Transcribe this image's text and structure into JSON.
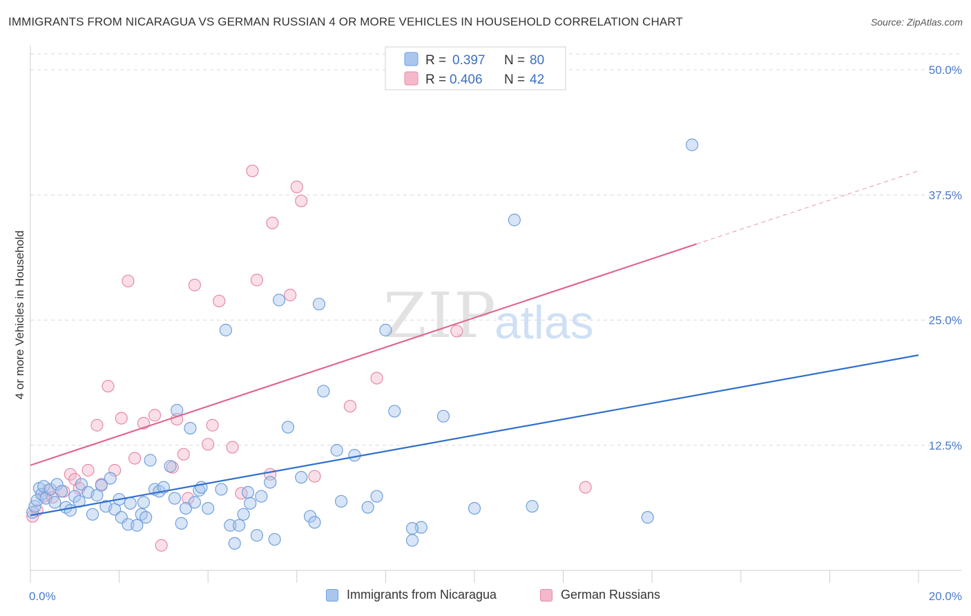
{
  "title": "IMMIGRANTS FROM NICARAGUA VS GERMAN RUSSIAN 4 OR MORE VEHICLES IN HOUSEHOLD CORRELATION CHART",
  "source": "Source: ZipAtlas.com",
  "watermark": {
    "zip": "ZIP",
    "atlas": "atlas"
  },
  "colors": {
    "blue_fill": "#a9c6ee",
    "blue_stroke": "#6f9fdc",
    "blue_line": "#2f6fcc",
    "pink_fill": "#f5b8cb",
    "pink_stroke": "#e58aa6",
    "pink_line": "#e0668e",
    "tick_text": "#4a79c9",
    "grid": "#d9d9d9"
  },
  "legend": {
    "r_label": "R =",
    "n_label": "N =",
    "rows": [
      {
        "r": "0.397",
        "n": "80",
        "series": "blue"
      },
      {
        "r": "0.406",
        "n": "42",
        "series": "pink"
      }
    ]
  },
  "chart_data": {
    "type": "scatter",
    "title": "IMMIGRANTS FROM NICARAGUA VS GERMAN RUSSIAN 4 OR MORE VEHICLES IN HOUSEHOLD CORRELATION CHART",
    "xlabel": "",
    "ylabel": "4 or more Vehicles in Household",
    "xlim": [
      0,
      20
    ],
    "ylim": [
      0,
      52
    ],
    "x_ticks": [
      {
        "value": 0,
        "label": "0.0%"
      },
      {
        "value": 20,
        "label": "20.0%"
      }
    ],
    "y_ticks": [
      {
        "value": 12.5,
        "label": "12.5%"
      },
      {
        "value": 25,
        "label": "25.0%"
      },
      {
        "value": 37.5,
        "label": "37.5%"
      },
      {
        "value": 50,
        "label": "50.0%"
      }
    ],
    "grid": true,
    "legend_position": "bottom-center",
    "series": [
      {
        "name": "Immigrants from Nicaragua",
        "color": "#6f9fdc",
        "r": 0.397,
        "n": 80,
        "trend": {
          "x0": 0,
          "y0": 5.5,
          "x1": 20,
          "y1": 21.5
        },
        "points": [
          [
            0.05,
            5.8
          ],
          [
            0.1,
            6.4
          ],
          [
            0.15,
            7.0
          ],
          [
            0.2,
            8.2
          ],
          [
            0.25,
            7.6
          ],
          [
            0.3,
            8.4
          ],
          [
            0.35,
            7.2
          ],
          [
            0.45,
            8.1
          ],
          [
            0.55,
            6.8
          ],
          [
            0.6,
            8.6
          ],
          [
            0.7,
            7.9
          ],
          [
            0.8,
            6.3
          ],
          [
            0.9,
            6.0
          ],
          [
            1.0,
            7.4
          ],
          [
            1.1,
            6.9
          ],
          [
            1.15,
            8.6
          ],
          [
            1.3,
            7.8
          ],
          [
            1.4,
            5.6
          ],
          [
            1.5,
            7.5
          ],
          [
            1.6,
            8.5
          ],
          [
            1.7,
            6.4
          ],
          [
            1.8,
            9.2
          ],
          [
            1.9,
            6.1
          ],
          [
            2.0,
            7.1
          ],
          [
            2.05,
            5.3
          ],
          [
            2.2,
            4.6
          ],
          [
            2.25,
            6.7
          ],
          [
            2.4,
            4.5
          ],
          [
            2.5,
            5.6
          ],
          [
            2.55,
            6.8
          ],
          [
            2.6,
            5.3
          ],
          [
            2.7,
            11.0
          ],
          [
            2.8,
            8.1
          ],
          [
            2.9,
            7.9
          ],
          [
            3.0,
            8.3
          ],
          [
            3.15,
            10.4
          ],
          [
            3.25,
            7.2
          ],
          [
            3.3,
            16.0
          ],
          [
            3.4,
            4.7
          ],
          [
            3.5,
            6.2
          ],
          [
            3.6,
            14.2
          ],
          [
            3.7,
            6.8
          ],
          [
            3.8,
            8.0
          ],
          [
            3.85,
            8.3
          ],
          [
            4.0,
            6.2
          ],
          [
            4.3,
            8.1
          ],
          [
            4.4,
            24.0
          ],
          [
            4.5,
            4.5
          ],
          [
            4.6,
            2.7
          ],
          [
            4.7,
            4.5
          ],
          [
            4.8,
            5.6
          ],
          [
            4.9,
            7.8
          ],
          [
            4.95,
            6.7
          ],
          [
            5.1,
            3.5
          ],
          [
            5.2,
            7.4
          ],
          [
            5.4,
            8.8
          ],
          [
            5.5,
            3.1
          ],
          [
            5.6,
            27.0
          ],
          [
            5.8,
            14.3
          ],
          [
            6.1,
            9.3
          ],
          [
            6.3,
            5.4
          ],
          [
            6.4,
            4.8
          ],
          [
            6.5,
            26.6
          ],
          [
            6.6,
            17.9
          ],
          [
            6.9,
            12.0
          ],
          [
            7.0,
            6.9
          ],
          [
            7.3,
            11.5
          ],
          [
            7.6,
            6.3
          ],
          [
            7.8,
            7.4
          ],
          [
            8.0,
            24.0
          ],
          [
            8.2,
            15.9
          ],
          [
            8.6,
            3.0
          ],
          [
            8.8,
            4.3
          ],
          [
            9.3,
            15.4
          ],
          [
            10.0,
            6.2
          ],
          [
            10.9,
            35.0
          ],
          [
            11.3,
            6.4
          ],
          [
            13.9,
            5.3
          ],
          [
            14.9,
            42.5
          ],
          [
            8.6,
            4.2
          ]
        ]
      },
      {
        "name": "German Russians",
        "color": "#e58aa6",
        "r": 0.406,
        "n": 42,
        "trend": {
          "x0": 0,
          "y0": 10.5,
          "x1": 15.0,
          "y1": 32.6
        },
        "trend_dashed_extension": {
          "x0": 15.0,
          "y0": 32.6,
          "x1": 20,
          "y1": 39.9
        },
        "points": [
          [
            0.05,
            5.4
          ],
          [
            0.15,
            6.0
          ],
          [
            0.3,
            7.4
          ],
          [
            0.4,
            8.0
          ],
          [
            0.5,
            7.3
          ],
          [
            0.75,
            7.9
          ],
          [
            0.9,
            9.6
          ],
          [
            1.0,
            9.1
          ],
          [
            1.1,
            8.2
          ],
          [
            1.3,
            10.0
          ],
          [
            1.5,
            14.5
          ],
          [
            1.6,
            8.6
          ],
          [
            1.75,
            18.4
          ],
          [
            1.9,
            10.0
          ],
          [
            2.05,
            15.2
          ],
          [
            2.2,
            28.9
          ],
          [
            2.35,
            11.2
          ],
          [
            2.55,
            14.7
          ],
          [
            2.8,
            15.5
          ],
          [
            2.95,
            2.5
          ],
          [
            3.2,
            10.3
          ],
          [
            3.3,
            15.1
          ],
          [
            3.45,
            11.6
          ],
          [
            3.55,
            7.2
          ],
          [
            3.7,
            28.5
          ],
          [
            4.0,
            12.6
          ],
          [
            4.1,
            14.5
          ],
          [
            4.25,
            26.9
          ],
          [
            4.55,
            12.3
          ],
          [
            4.75,
            7.7
          ],
          [
            5.0,
            39.9
          ],
          [
            5.1,
            29.0
          ],
          [
            5.4,
            9.6
          ],
          [
            5.45,
            34.7
          ],
          [
            5.85,
            27.5
          ],
          [
            6.0,
            38.3
          ],
          [
            6.1,
            36.9
          ],
          [
            6.4,
            9.4
          ],
          [
            7.2,
            16.4
          ],
          [
            7.8,
            19.2
          ],
          [
            9.6,
            23.9
          ],
          [
            12.5,
            8.3
          ]
        ]
      }
    ]
  },
  "bottom_legend": [
    {
      "label": "Immigrants from Nicaragua",
      "series": "blue"
    },
    {
      "label": "German Russians",
      "series": "pink"
    }
  ]
}
